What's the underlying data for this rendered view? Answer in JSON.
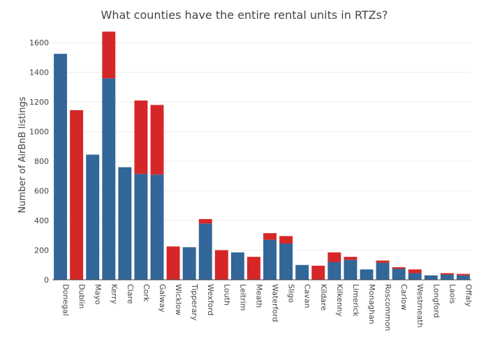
{
  "chart_data": {
    "type": "bar",
    "stacked": true,
    "title": "What counties have the entire rental units in RTZs?",
    "xlabel": "",
    "ylabel": "Number of AirBnB listings",
    "ylim": [
      0,
      1700
    ],
    "yticks": [
      0,
      200,
      400,
      600,
      800,
      1000,
      1200,
      1400,
      1600
    ],
    "grid": true,
    "categories": [
      "Donegal",
      "Dublin",
      "Mayo",
      "Kerry",
      "Clare",
      "Cork",
      "Galway",
      "Wicklow",
      "Tipperary",
      "Wexford",
      "Louth",
      "Leitrim",
      "Meath",
      "Waterford",
      "Sligo",
      "Cavan",
      "Kildare",
      "Kilkenny",
      "Limerick",
      "Monaghan",
      "Roscommon",
      "Carlow",
      "Westmeath",
      "Longford",
      "Laois",
      "Offaly"
    ],
    "series": [
      {
        "color": "#336699",
        "values": [
          1525,
          0,
          845,
          1360,
          760,
          715,
          710,
          0,
          220,
          380,
          0,
          185,
          0,
          270,
          245,
          100,
          0,
          120,
          135,
          70,
          115,
          75,
          45,
          30,
          35,
          30
        ]
      },
      {
        "color": "#d62728",
        "values": [
          0,
          1145,
          0,
          315,
          0,
          495,
          470,
          225,
          0,
          30,
          200,
          0,
          155,
          45,
          50,
          0,
          95,
          65,
          20,
          0,
          15,
          10,
          25,
          0,
          10,
          10
        ]
      }
    ]
  }
}
